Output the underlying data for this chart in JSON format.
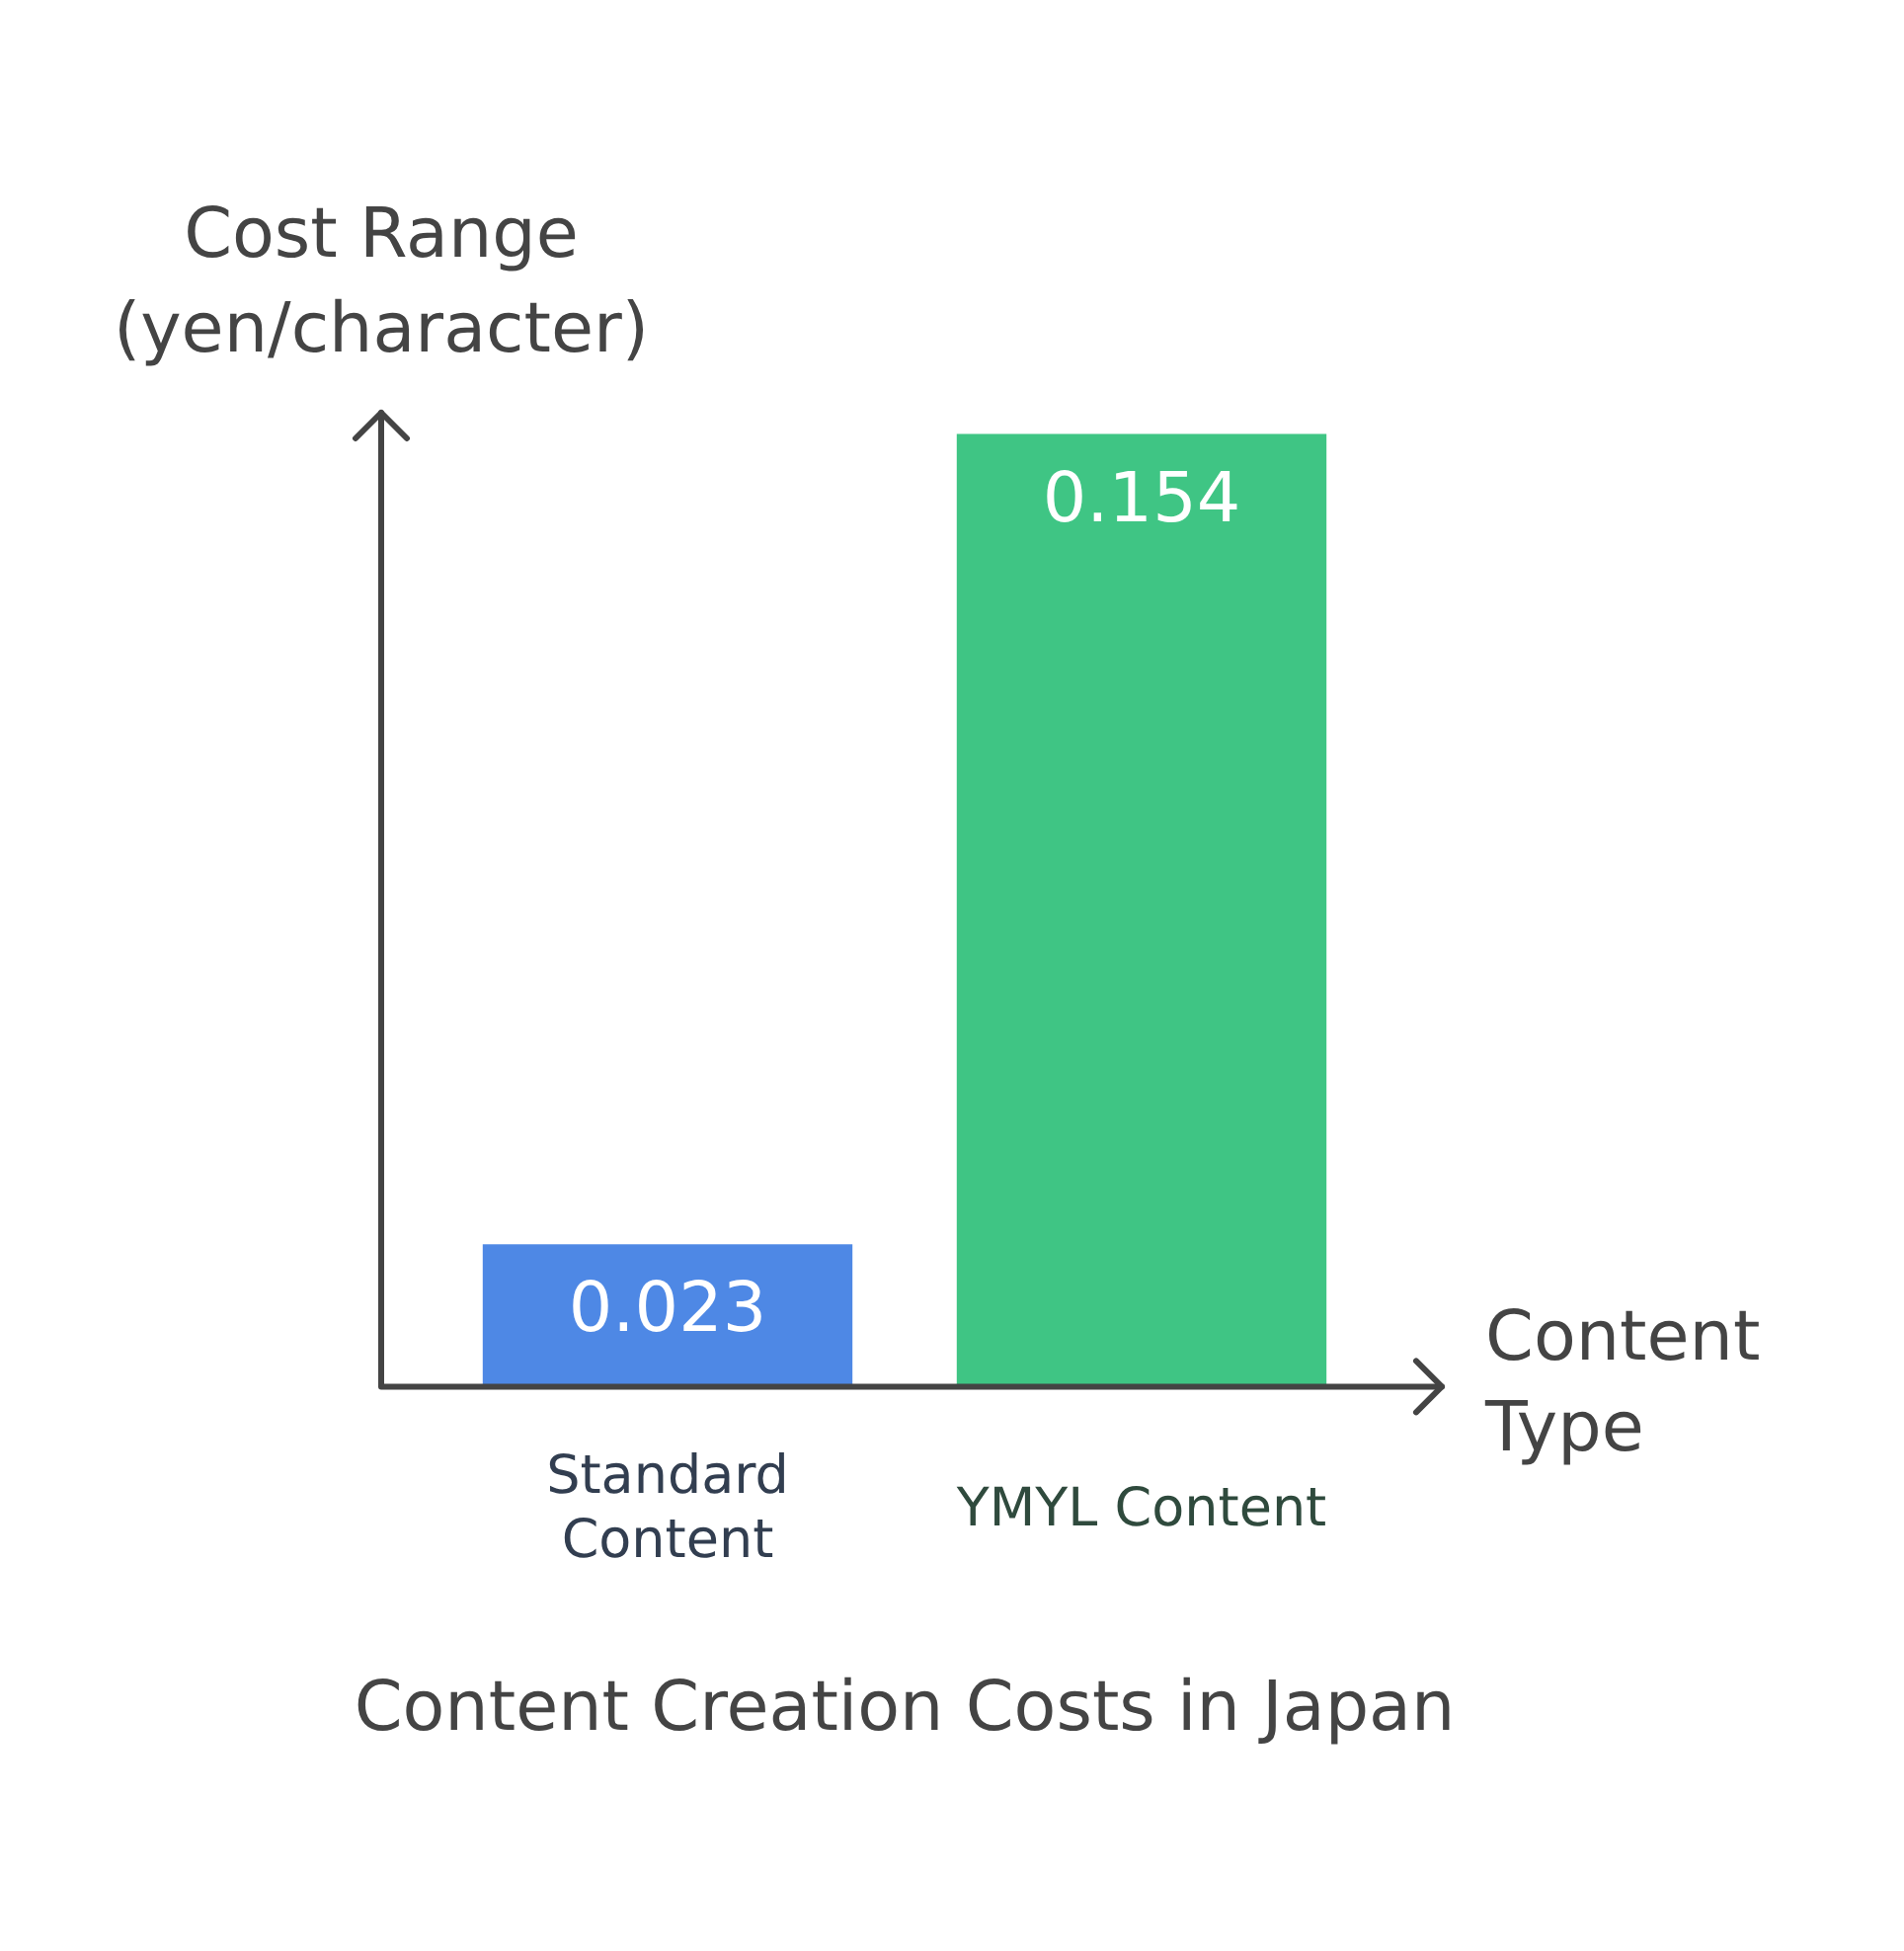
{
  "chart_data": {
    "type": "bar",
    "title": "Content Creation Costs in Japan",
    "xlabel": "Content Type",
    "ylabel": "Cost Range (yen/character)",
    "categories": [
      "Standard Content",
      "YMYL Content"
    ],
    "values": [
      0.023,
      0.154
    ],
    "colors": [
      "#4e88e5",
      "#3fc584"
    ],
    "data_labels": true
  }
}
